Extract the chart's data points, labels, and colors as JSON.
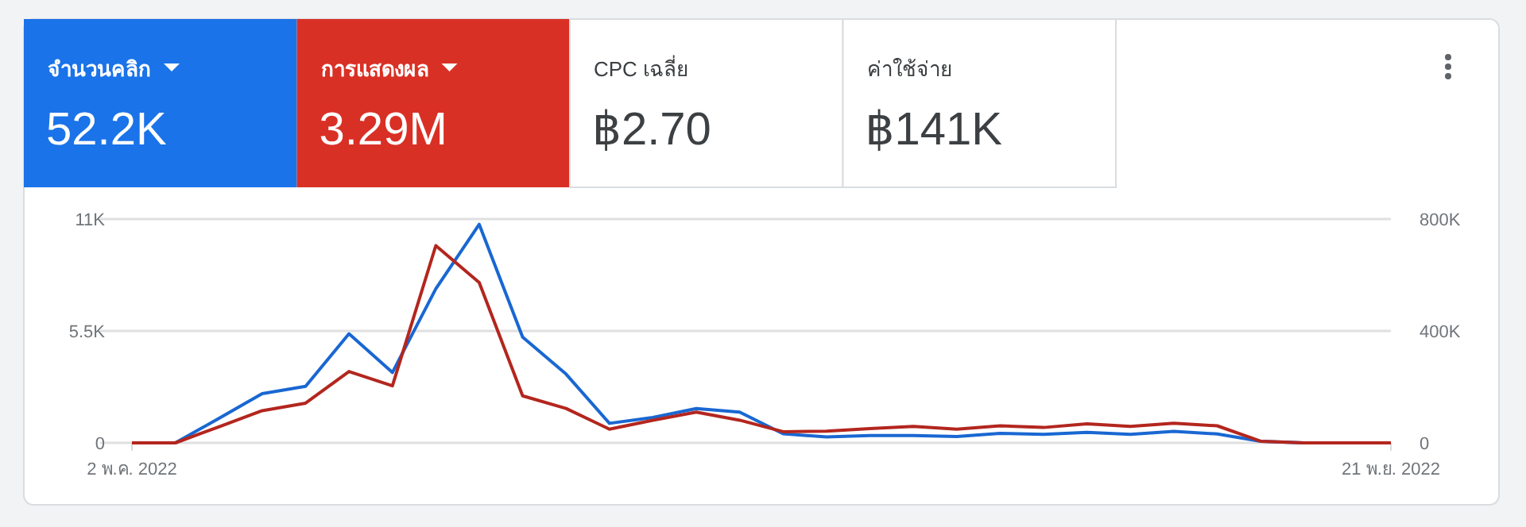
{
  "chart_data": [
    {
      "type": "other",
      "categories": [
        "จำนวนคลิก",
        "การแสดงผล",
        "CPC เฉลี่ย",
        "ค่าใช้จ่าย"
      ],
      "value_labels": [
        "52.2K",
        "3.29M",
        "฿2.70",
        "฿141K"
      ],
      "colors": [
        "#1a73e8",
        "#d93025",
        "#ffffff",
        "#ffffff"
      ]
    },
    {
      "type": "line",
      "categories": [
        "2 พ.ค. 2022",
        null,
        null,
        null,
        null,
        null,
        null,
        null,
        null,
        null,
        null,
        null,
        null,
        null,
        null,
        null,
        null,
        null,
        null,
        null,
        null,
        null,
        null,
        null,
        null,
        null,
        null,
        null,
        null,
        "21 พ.ย. 2022"
      ],
      "series": [
        {
          "color": "#1967d2",
          "values": [
            0,
            0,
            1200,
            2420,
            2780,
            5360,
            3460,
            7570,
            10740,
            5200,
            3380,
            960,
            1250,
            1690,
            1510,
            450,
            290,
            360,
            360,
            310,
            470,
            420,
            520,
            420,
            570,
            440,
            80,
            0,
            null,
            null
          ]
        },
        {
          "color": "#b3261e",
          "axis": "y2",
          "values": [
            0,
            0,
            57000,
            115000,
            142000,
            255000,
            204000,
            705000,
            573000,
            168000,
            123000,
            49000,
            81000,
            110000,
            81000,
            40000,
            42000,
            51000,
            59000,
            49000,
            61000,
            55000,
            68000,
            59000,
            70000,
            61000,
            6000,
            0,
            0,
            0
          ]
        }
      ],
      "ylim": [
        0,
        11000
      ],
      "yticks": [
        0,
        {
          "value": 5500,
          "label": "5.5K"
        },
        {
          "value": 11000,
          "label": "11K"
        }
      ],
      "y2lim": [
        0,
        800000
      ],
      "y2ticks": [
        0,
        {
          "value": 400000,
          "label": "400K"
        },
        {
          "value": 800000,
          "label": "800K"
        }
      ],
      "grid": "y",
      "marker": "none",
      "line_style": "solid"
    }
  ]
}
